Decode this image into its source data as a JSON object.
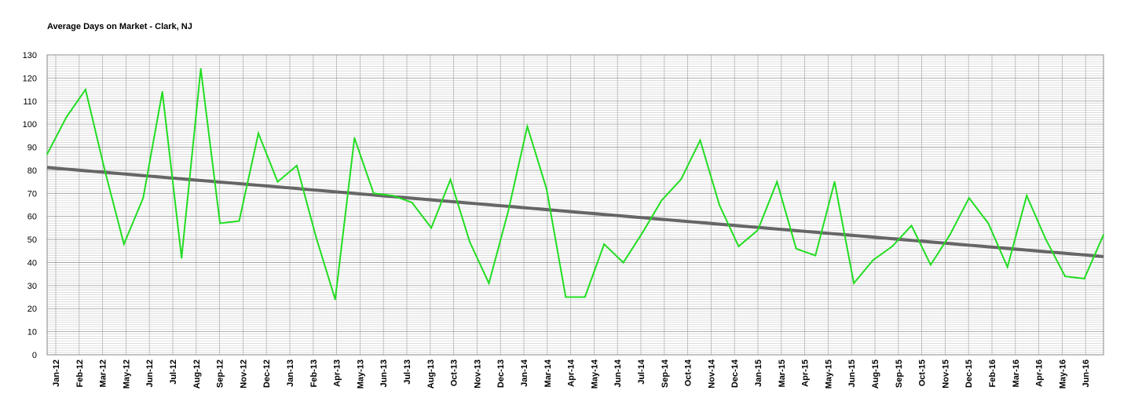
{
  "chart_data": {
    "type": "line",
    "title": "Average Days on Market - Clark, NJ",
    "xlabel": "",
    "ylabel": "",
    "ylim": [
      0,
      130
    ],
    "yticks": [
      0,
      10,
      20,
      30,
      40,
      50,
      60,
      70,
      80,
      90,
      100,
      110,
      120,
      130
    ],
    "x_tick_labels": [
      "Jan-12",
      "Feb-12",
      "Mar-12",
      "May-12",
      "Jun-12",
      "Jul-12",
      "Aug-12",
      "Sep-12",
      "Nov-12",
      "Dec-12",
      "Jan-13",
      "Feb-13",
      "Apr-13",
      "May-13",
      "Jun-13",
      "Jul-13",
      "Aug-13",
      "Oct-13",
      "Nov-13",
      "Dec-13",
      "Jan-14",
      "Mar-14",
      "Apr-14",
      "May-14",
      "Jun-14",
      "Jul-14",
      "Sep-14",
      "Oct-14",
      "Nov-14",
      "Dec-14",
      "Jan-15",
      "Mar-15",
      "Apr-15",
      "May-15",
      "Jun-15",
      "Aug-15",
      "Sep-15",
      "Oct-15",
      "Nov-15",
      "Dec-15",
      "Feb-16",
      "Mar-16",
      "Apr-16",
      "May-16",
      "Jun-16"
    ],
    "grid": true,
    "series": [
      {
        "color": "#22dd22",
        "values": [
          87,
          103,
          115,
          80,
          48,
          68,
          114,
          42,
          124,
          57,
          58,
          96,
          75,
          82,
          51,
          24,
          94,
          70,
          69,
          66,
          55,
          76,
          49,
          31,
          62,
          99,
          72,
          25,
          25,
          48,
          40,
          53,
          67,
          76,
          93,
          65,
          47,
          54,
          75,
          46,
          43,
          75,
          31,
          41,
          47,
          56,
          39,
          52,
          68,
          57,
          38,
          69,
          50,
          34,
          33,
          52
        ]
      },
      {
        "type": "trendline",
        "color": "#666666",
        "values": [
          81.2,
          42.6
        ]
      }
    ]
  }
}
